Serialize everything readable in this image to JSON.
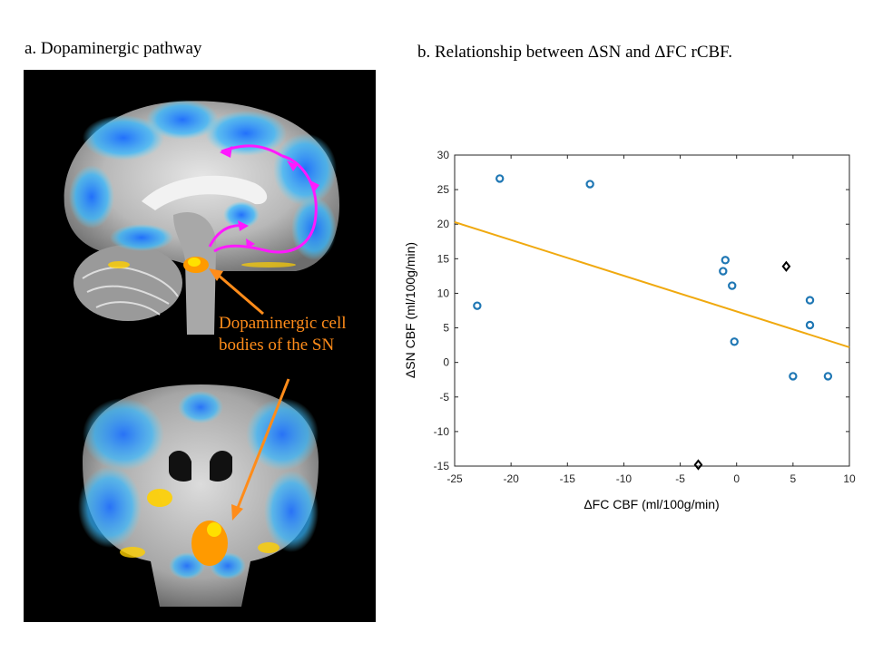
{
  "panel_a": {
    "title": "a. Dopaminergic pathway",
    "label_line1": "Dopaminergic cell",
    "label_line2": "bodies of the SN",
    "arrow_color": "#ff8c1a",
    "pathway_color": "#ff19ff"
  },
  "panel_b": {
    "title": "b. Relationship between ΔSN and ΔFC rCBF."
  },
  "chart_data": {
    "type": "scatter",
    "title": "",
    "xlabel": "ΔFC CBF (ml/100g/min)",
    "ylabel": "ΔSN CBF (ml/100g/min)",
    "xlim": [
      -25,
      10
    ],
    "ylim": [
      -15,
      30
    ],
    "xticks": [
      -25,
      -20,
      -15,
      -10,
      -5,
      0,
      5,
      10
    ],
    "yticks": [
      -15,
      -10,
      -5,
      0,
      5,
      10,
      15,
      20,
      25,
      30
    ],
    "grid": false,
    "series": [
      {
        "marker": "circle",
        "color": "#1f77b4",
        "points": [
          [
            -23,
            8.2
          ],
          [
            -21,
            26.6
          ],
          [
            -13,
            25.8
          ],
          [
            -1,
            14.8
          ],
          [
            -1.2,
            13.2
          ],
          [
            -0.4,
            11.1
          ],
          [
            -0.2,
            3.0
          ],
          [
            5,
            -2.0
          ],
          [
            6.5,
            9.0
          ],
          [
            6.5,
            5.4
          ],
          [
            8.1,
            -2.0
          ]
        ]
      },
      {
        "marker": "diamond",
        "color": "#000000",
        "points": [
          [
            4.4,
            13.9
          ],
          [
            -3.4,
            -14.8
          ]
        ]
      }
    ],
    "fit_line": {
      "color": "#f0a90f",
      "points": [
        [
          -25,
          20.3
        ],
        [
          10,
          2.2
        ]
      ]
    }
  }
}
